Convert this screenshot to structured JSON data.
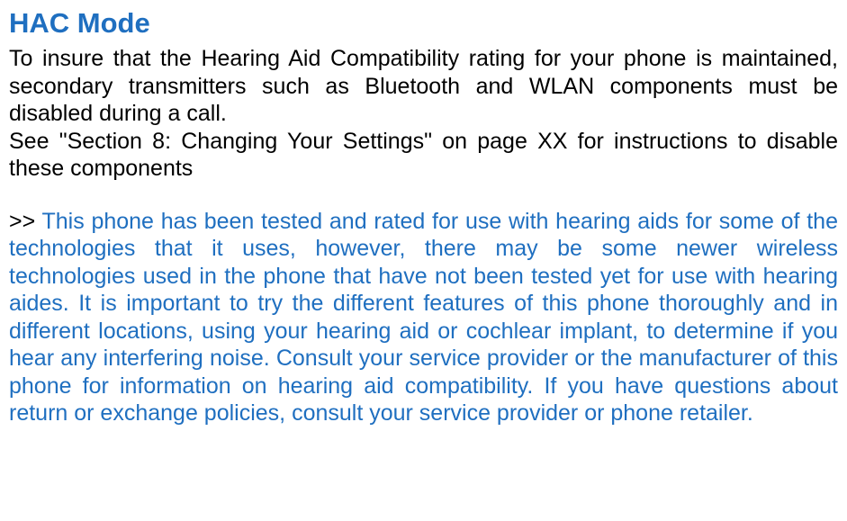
{
  "title": "HAC Mode",
  "paragraph1": "To insure that the Hearing Aid Compatibility rating for your phone is maintained, secondary transmitters such as Bluetooth and WLAN components must be disabled during a call.",
  "paragraph2": "See \"Section 8: Changing Your Settings\" on page XX for instructions to disable these components",
  "highlight_prefix": ">> ",
  "highlight_body": "This phone has been tested and rated for use with hearing aids for some of the technologies that it uses, however, there may be some newer wireless technologies used in the phone that have not been tested yet for use with hearing aides. It is important to try the different features of this phone thoroughly and in different locations, using your hearing aid or cochlear implant, to determine if you hear any interfering noise. Consult your service provider or the manufacturer of this phone for information on hearing aid compatibility. If you have questions about return or exchange policies, consult your service provider or phone retailer.",
  "colors": {
    "title_color": "#1f6fc0",
    "highlight_color": "#1f6fc0",
    "body_color": "#000000",
    "background": "#ffffff"
  },
  "typography": {
    "title_fontsize": 31,
    "body_fontsize": 25,
    "title_weight": "bold",
    "font_family": "Arial"
  }
}
